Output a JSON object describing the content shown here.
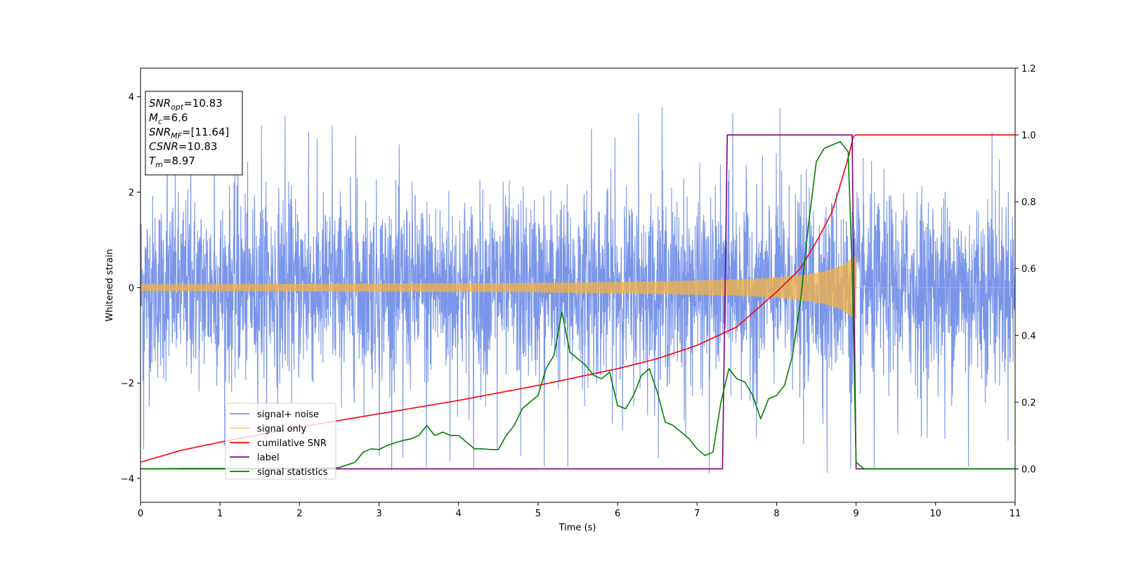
{
  "chart_data": {
    "type": "line",
    "xlabel": "Time (s)",
    "ylabel_left": "Whitened strain",
    "ylabel_right": "",
    "xlim": [
      0,
      11
    ],
    "ylim_left": [
      -4.5,
      4.6
    ],
    "ylim_right": [
      -0.1,
      1.2
    ],
    "x_ticks": [
      "0",
      "1",
      "2",
      "3",
      "4",
      "5",
      "6",
      "7",
      "8",
      "9",
      "10",
      "11"
    ],
    "y_ticks_left": [
      "4",
      "2",
      "0",
      "−2",
      "−4"
    ],
    "y_ticks_right": [
      "1.2",
      "1.0",
      "0.8",
      "0.6",
      "0.4",
      "0.2",
      "0.0"
    ],
    "colors": {
      "signal_noise": "#4169e1",
      "signal_only": "#f5b041",
      "cumulative_snr": "#ff0000",
      "label": "#800080",
      "signal_statistics": "#008000"
    },
    "annotation": {
      "lines": [
        {
          "base": "SNR",
          "sub": "opt",
          "value": "=10.83"
        },
        {
          "base": "M",
          "sub": "c",
          "value": "=6.6"
        },
        {
          "base": "SNR",
          "sub": "MF",
          "value": "=[11.64]"
        },
        {
          "base": "CSNR",
          "sub": "",
          "value": "=10.83"
        },
        {
          "base": "T",
          "sub": "m",
          "value": "=8.97"
        }
      ]
    },
    "legend": {
      "placement": "lower-left",
      "entries": [
        "signal+ noise",
        "signal only",
        "cumilative SNR",
        "label",
        "signal statistics"
      ]
    },
    "series": [
      {
        "name": "signal+ noise",
        "axis": "left",
        "kind": "noise",
        "t_range": [
          0,
          11
        ],
        "typical_amplitude": 2.2,
        "max_values": [
          3.9,
          3.8,
          3.7,
          3.6,
          3.5
        ],
        "min_values": [
          -4.1,
          -3.8,
          -3.7
        ]
      },
      {
        "name": "signal only",
        "axis": "left",
        "kind": "chirp",
        "t_range": [
          0,
          9.0
        ],
        "envelope": {
          "t": [
            0,
            2,
            4,
            5,
            6,
            7,
            7.5,
            8,
            8.3,
            8.6,
            8.8,
            8.9,
            8.97
          ],
          "amp": [
            0.07,
            0.08,
            0.09,
            0.1,
            0.12,
            0.15,
            0.17,
            0.21,
            0.26,
            0.34,
            0.45,
            0.55,
            0.65
          ]
        }
      },
      {
        "name": "cumilative SNR",
        "axis": "right",
        "x": [
          0,
          0.5,
          1,
          2,
          3,
          4,
          5,
          6,
          6.5,
          7,
          7.5,
          8,
          8.3,
          8.5,
          8.7,
          8.8,
          8.9,
          8.97,
          9.0,
          11
        ],
        "y": [
          0.02,
          0.055,
          0.08,
          0.125,
          0.165,
          0.205,
          0.25,
          0.3,
          0.33,
          0.37,
          0.425,
          0.53,
          0.6,
          0.68,
          0.77,
          0.85,
          0.93,
          1.0,
          1.0,
          1.0
        ]
      },
      {
        "name": "label",
        "axis": "right",
        "x": [
          0,
          7.32,
          7.38,
          8.95,
          9.0,
          11
        ],
        "y": [
          0,
          0,
          1,
          1,
          0,
          0
        ]
      },
      {
        "name": "signal statistics",
        "axis": "right",
        "x": [
          0,
          0.5,
          1,
          1.5,
          2,
          2.5,
          2.7,
          2.8,
          2.9,
          3.0,
          3.1,
          3.2,
          3.3,
          3.4,
          3.5,
          3.6,
          3.7,
          3.8,
          3.9,
          4.0,
          4.1,
          4.2,
          4.3,
          4.4,
          4.5,
          4.6,
          4.7,
          4.8,
          4.9,
          5.0,
          5.1,
          5.2,
          5.3,
          5.4,
          5.5,
          5.6,
          5.7,
          5.8,
          5.9,
          6.0,
          6.1,
          6.2,
          6.3,
          6.4,
          6.5,
          6.6,
          6.7,
          6.8,
          6.9,
          7.0,
          7.1,
          7.2,
          7.3,
          7.4,
          7.5,
          7.6,
          7.7,
          7.8,
          7.9,
          8.0,
          8.1,
          8.2,
          8.3,
          8.4,
          8.5,
          8.6,
          8.7,
          8.8,
          8.9,
          8.95,
          9.0,
          9.1,
          11
        ],
        "y": [
          0.0,
          0.001,
          0.001,
          0.001,
          0.001,
          0.004,
          0.02,
          0.05,
          0.06,
          0.058,
          0.07,
          0.078,
          0.085,
          0.09,
          0.1,
          0.13,
          0.1,
          0.11,
          0.1,
          0.1,
          0.08,
          0.06,
          0.06,
          0.058,
          0.058,
          0.1,
          0.13,
          0.18,
          0.2,
          0.22,
          0.3,
          0.34,
          0.47,
          0.35,
          0.33,
          0.31,
          0.28,
          0.27,
          0.29,
          0.19,
          0.18,
          0.22,
          0.28,
          0.3,
          0.23,
          0.14,
          0.13,
          0.11,
          0.09,
          0.06,
          0.04,
          0.05,
          0.2,
          0.3,
          0.27,
          0.26,
          0.22,
          0.15,
          0.21,
          0.22,
          0.25,
          0.34,
          0.5,
          0.73,
          0.92,
          0.96,
          0.97,
          0.98,
          0.95,
          0.6,
          0.02,
          0.0,
          0.0
        ]
      }
    ]
  }
}
